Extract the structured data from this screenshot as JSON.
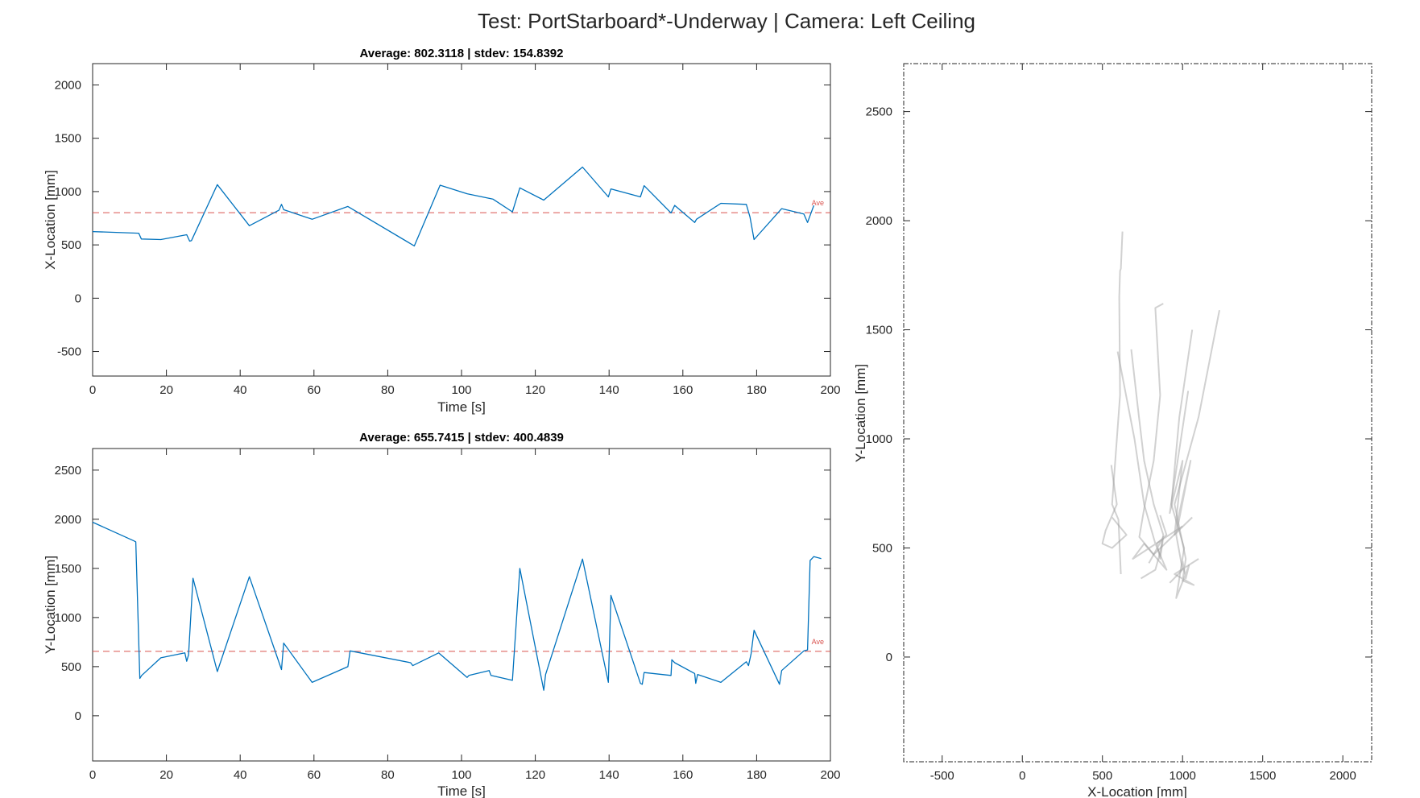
{
  "figure": {
    "suptitle": "Test: PortStarboard*-Underway  |  Camera: Left Ceiling"
  },
  "chart_data": [
    {
      "type": "line",
      "title": "Average: 802.3118  |  stdev: 154.8392",
      "xlabel": "Time [s]",
      "ylabel": "X-Location [mm]",
      "xlim": [
        0,
        200
      ],
      "ylim": [
        -730,
        2200
      ],
      "xticks": [
        0,
        20,
        40,
        60,
        80,
        100,
        120,
        140,
        160,
        180,
        200
      ],
      "yticks": [
        -500,
        0,
        500,
        1000,
        1500,
        2000
      ],
      "average": 802.3118,
      "average_label": "Ave",
      "x": [
        0,
        12.5,
        13.2,
        18.5,
        25.5,
        26.3,
        26.8,
        33.8,
        42.5,
        50.5,
        51.2,
        51.8,
        59.5,
        69.2,
        87.2,
        94.2,
        101.5,
        108.5,
        113.8,
        115.8,
        122.3,
        132.8,
        139.8,
        140.5,
        148.5,
        149.5,
        156.8,
        157.8,
        163.2,
        163.7,
        170.3,
        177.2,
        178.2,
        179.3,
        186.8,
        192.8,
        193.8,
        195.5
      ],
      "series": [
        {
          "values": [
            625,
            610,
            555,
            550,
            595,
            535,
            540,
            1065,
            680,
            825,
            880,
            830,
            740,
            860,
            490,
            1060,
            980,
            930,
            810,
            1035,
            920,
            1230,
            950,
            1025,
            950,
            1055,
            800,
            870,
            710,
            740,
            890,
            880,
            760,
            550,
            840,
            790,
            710,
            870
          ]
        }
      ]
    },
    {
      "type": "line",
      "title": "Average: 655.7415  |  stdev: 400.4839",
      "xlabel": "Time [s]",
      "ylabel": "Y-Location [mm]",
      "xlim": [
        0,
        200
      ],
      "ylim": [
        -460,
        2720
      ],
      "xticks": [
        0,
        20,
        40,
        60,
        80,
        100,
        120,
        140,
        160,
        180,
        200
      ],
      "yticks": [
        0,
        500,
        1000,
        1500,
        2000,
        2500
      ],
      "average": 655.7415,
      "average_label": "Ave",
      "x": [
        0,
        11.2,
        11.7,
        12.8,
        13.3,
        18.5,
        25.0,
        25.5,
        26.0,
        27.2,
        33.8,
        42.5,
        51.2,
        51.8,
        59.5,
        69.2,
        69.8,
        86.2,
        86.8,
        93.8,
        101.5,
        102.0,
        107.5,
        108.0,
        113.8,
        115.8,
        122.3,
        122.8,
        132.8,
        139.8,
        140.5,
        148.5,
        149.0,
        149.5,
        156.8,
        157.0,
        157.8,
        163.2,
        163.5,
        164.0,
        170.3,
        177.2,
        177.8,
        178.5,
        179.3,
        186.2,
        186.8,
        192.8,
        193.8,
        194.5,
        195.5,
        197.5
      ],
      "series": [
        {
          "values": [
            1970,
            1780,
            1770,
            380,
            410,
            590,
            640,
            555,
            620,
            1400,
            450,
            1415,
            470,
            740,
            340,
            500,
            660,
            540,
            510,
            640,
            390,
            410,
            460,
            410,
            360,
            1500,
            260,
            420,
            1595,
            340,
            1225,
            330,
            320,
            440,
            410,
            570,
            540,
            430,
            330,
            420,
            340,
            550,
            510,
            630,
            870,
            320,
            460,
            660,
            670,
            1580,
            1620,
            1600
          ]
        }
      ]
    },
    {
      "type": "line",
      "xlabel": "X-Location [mm]",
      "ylabel": "Y-Location [mm]",
      "xlim": [
        -740,
        2180
      ],
      "ylim": [
        -480,
        2720
      ],
      "xticks": [
        -500,
        0,
        500,
        1000,
        1500,
        2000
      ],
      "yticks": [
        0,
        500,
        1000,
        1500,
        2000,
        2500
      ],
      "series": [
        {
          "x": [
            625,
            615,
            610,
            605,
            610,
            560,
            600,
            615
          ],
          "y": [
            1950,
            1780,
            1770,
            1650,
            1200,
            700,
            630,
            380
          ]
        },
        {
          "x": [
            555,
            570,
            590,
            520,
            500,
            560,
            650,
            560
          ],
          "y": [
            880,
            800,
            700,
            580,
            520,
            500,
            560,
            640
          ]
        },
        {
          "x": [
            595,
            700,
            760,
            830,
            900,
            760,
            690,
            1000
          ],
          "y": [
            1400,
            1000,
            700,
            520,
            400,
            520,
            450,
            600
          ]
        },
        {
          "x": [
            680,
            720,
            760,
            820,
            880,
            860,
            830,
            740
          ],
          "y": [
            1410,
            1150,
            900,
            700,
            560,
            480,
            400,
            360
          ]
        },
        {
          "x": [
            880,
            830,
            860,
            820,
            760,
            730,
            820,
            1060
          ],
          "y": [
            1620,
            1600,
            1200,
            900,
            680,
            550,
            470,
            640
          ]
        },
        {
          "x": [
            1060,
            980,
            930,
            1010,
            960,
            1040,
            1020,
            1000
          ],
          "y": [
            1500,
            1100,
            700,
            500,
            270,
            420,
            360,
            440
          ]
        },
        {
          "x": [
            1035,
            920,
            1000,
            950,
            1050,
            960,
            1000,
            920
          ],
          "y": [
            1220,
            660,
            900,
            560,
            900,
            560,
            400,
            340
          ]
        },
        {
          "x": [
            1230,
            1100,
            950,
            1020,
            1000,
            1070,
            950,
            1100
          ],
          "y": [
            1590,
            1100,
            700,
            450,
            350,
            330,
            380,
            450
          ]
        },
        {
          "x": [
            860,
            900,
            840,
            860,
            880,
            790
          ],
          "y": [
            650,
            560,
            520,
            450,
            550,
            430
          ]
        }
      ]
    }
  ]
}
